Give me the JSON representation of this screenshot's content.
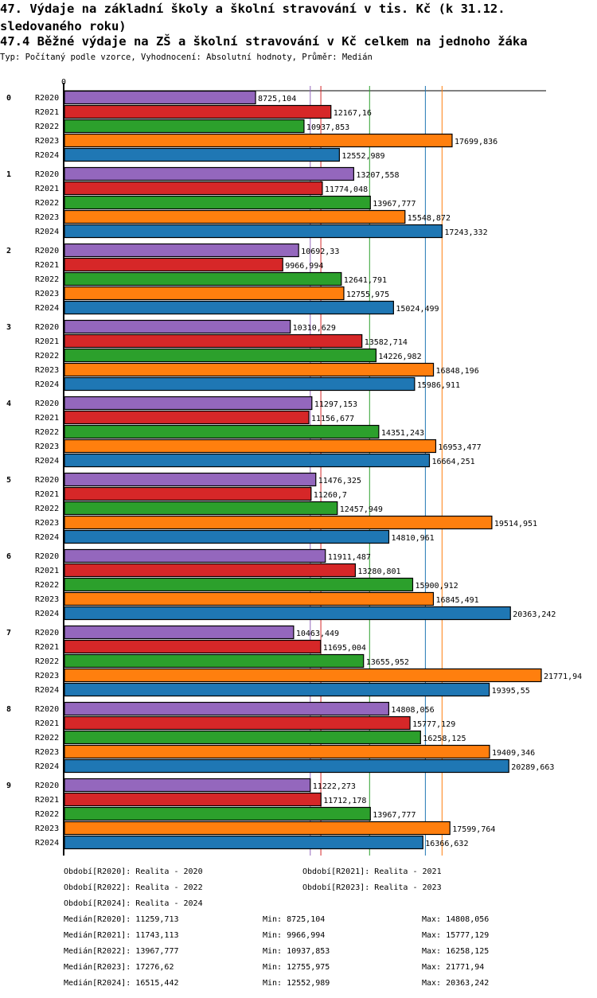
{
  "header": {
    "title": "47. Výdaje na základní školy a školní stravování v tis. Kč (k 31.12. sledovaného roku)",
    "subtitle": "47.4 Běžné výdaje na ZŠ a školní stravování v Kč celkem na jednoho žáka",
    "info": "Typ: Počítaný podle vzorce, Vyhodnocení: Absolutní hodnoty, Průměr: Medián"
  },
  "chart_data": {
    "type": "bar",
    "orientation": "horizontal",
    "axis_zero_label": "0",
    "xlim": [
      0,
      21771.94
    ],
    "categories": [
      "0",
      "1",
      "2",
      "3",
      "4",
      "5",
      "6",
      "7",
      "8",
      "9"
    ],
    "series": [
      {
        "name": "R2020",
        "color": "#9467bd",
        "values": [
          "8725,104",
          "13207,558",
          "10692,33",
          "10310,629",
          "11297,153",
          "11476,325",
          "11911,487",
          "10463,449",
          "14808,056",
          "11222,273"
        ]
      },
      {
        "name": "R2021",
        "color": "#d62728",
        "values": [
          "12167,16",
          "11774,048",
          "9966,994",
          "13582,714",
          "11156,677",
          "11260,7",
          "13280,801",
          "11695,004",
          "15777,129",
          "11712,178"
        ]
      },
      {
        "name": "R2022",
        "color": "#2ca02c",
        "values": [
          "10937,853",
          "13967,777",
          "12641,791",
          "14226,982",
          "14351,243",
          "12457,949",
          "15900,912",
          "13655,952",
          "16258,125",
          "13967,777"
        ]
      },
      {
        "name": "R2023",
        "color": "#ff7f0e",
        "values": [
          "17699,836",
          "15548,872",
          "12755,975",
          "16848,196",
          "16953,477",
          "19514,951",
          "16845,491",
          "21771,94",
          "19409,346",
          "17599,764"
        ]
      },
      {
        "name": "R2024",
        "color": "#1f77b4",
        "values": [
          "12552,989",
          "17243,332",
          "15024,499",
          "15986,911",
          "16664,251",
          "14810,961",
          "20363,242",
          "19395,55",
          "20289,663",
          "16366,632"
        ]
      }
    ],
    "medians": [
      11259.713,
      11743.113,
      13967.777,
      17276.62,
      16515.442
    ]
  },
  "legend": {
    "periods": [
      "Období[R2020]: Realita - 2020",
      "Období[R2021]: Realita - 2021",
      "Období[R2022]: Realita - 2022",
      "Období[R2023]: Realita - 2023",
      "Období[R2024]: Realita - 2024"
    ],
    "stats": [
      {
        "median": "Medián[R2020]: 11259,713",
        "min": "Min: 8725,104",
        "max": "Max: 14808,056"
      },
      {
        "median": "Medián[R2021]: 11743,113",
        "min": "Min: 9966,994",
        "max": "Max: 15777,129"
      },
      {
        "median": "Medián[R2022]: 13967,777",
        "min": "Min: 10937,853",
        "max": "Max: 16258,125"
      },
      {
        "median": "Medián[R2023]: 17276,62",
        "min": "Min: 12755,975",
        "max": "Max: 21771,94"
      },
      {
        "median": "Medián[R2024]: 16515,442",
        "min": "Min: 12552,989",
        "max": "Max: 20363,242"
      }
    ]
  }
}
